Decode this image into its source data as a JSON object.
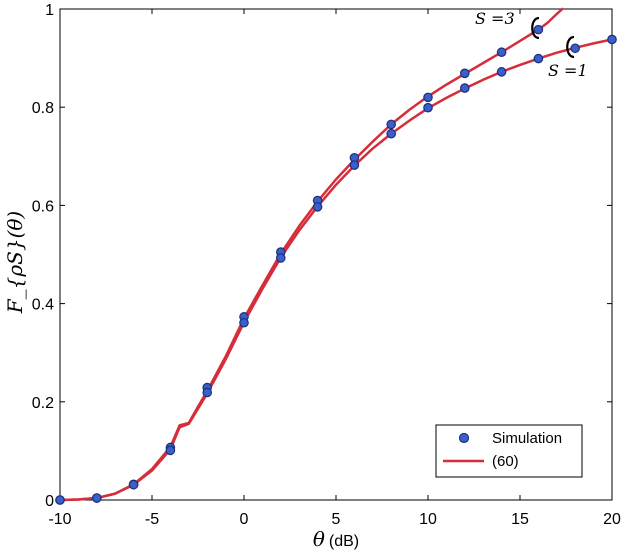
{
  "chart_data": {
    "type": "line",
    "xlabel": "θ",
    "xlabel_unit": "(dB)",
    "ylabel": "F_{ρS}(θ)",
    "xlim": [
      -10,
      20
    ],
    "ylim": [
      0,
      1
    ],
    "x_ticks": [
      -10,
      -5,
      0,
      5,
      10,
      15,
      20
    ],
    "y_ticks": [
      0,
      0.2,
      0.4,
      0.6,
      0.8,
      1
    ],
    "x_tick_labels": [
      "-10",
      "-5",
      "0",
      "5",
      "10",
      "15",
      "20"
    ],
    "y_tick_labels": [
      "0",
      "0.2",
      "0.4",
      "0.6",
      "0.8",
      "1"
    ],
    "grid": false,
    "legend": {
      "placement": "bottom-right",
      "entries": [
        {
          "label": "Simulation",
          "marker": "circle"
        },
        {
          "label": "(60)",
          "marker": "line"
        }
      ]
    },
    "colors": {
      "curve": "#d62d3a",
      "marker_fill": "#3a5fc8",
      "marker_edge": "#1c2f7a"
    },
    "annotations": [
      {
        "text": "S =3",
        "points_to": "upper curve"
      },
      {
        "text": "S =1",
        "points_to": "lower curve"
      }
    ],
    "series": [
      {
        "name": "S=3 (60)",
        "kind": "line",
        "x": [
          -10,
          -9,
          -8,
          -7,
          -6,
          -5,
          -4,
          -3.5,
          -3,
          -2.5,
          -2,
          -1,
          0,
          1,
          2,
          3,
          4,
          5,
          6,
          7,
          8,
          9,
          10,
          11,
          12,
          13,
          14,
          15,
          16,
          16.5,
          17,
          17.3
        ],
        "y": [
          0,
          0.001,
          0.004,
          0.013,
          0.032,
          0.063,
          0.108,
          0.152,
          0.157,
          0.19,
          0.222,
          0.292,
          0.37,
          0.437,
          0.502,
          0.558,
          0.608,
          0.653,
          0.693,
          0.73,
          0.765,
          0.795,
          0.822,
          0.846,
          0.868,
          0.89,
          0.912,
          0.935,
          0.958,
          0.972,
          0.99,
          1.0
        ]
      },
      {
        "name": "S=1 (60)",
        "kind": "line",
        "x": [
          -10,
          -9,
          -8,
          -7,
          -6,
          -5,
          -4,
          -3.5,
          -3,
          -2.5,
          -2,
          -1,
          0,
          1,
          2,
          3,
          4,
          5,
          6,
          7,
          8,
          9,
          10,
          11,
          12,
          13,
          14,
          15,
          16,
          17,
          18,
          19,
          20
        ],
        "y": [
          0,
          0.001,
          0.004,
          0.013,
          0.031,
          0.06,
          0.103,
          0.148,
          0.155,
          0.186,
          0.217,
          0.286,
          0.362,
          0.43,
          0.494,
          0.549,
          0.598,
          0.642,
          0.681,
          0.716,
          0.746,
          0.773,
          0.798,
          0.819,
          0.838,
          0.856,
          0.872,
          0.886,
          0.899,
          0.911,
          0.921,
          0.93,
          0.938
        ]
      },
      {
        "name": "S=3 Simulation",
        "kind": "scatter",
        "x": [
          -10,
          -8,
          -6,
          -4,
          -2,
          0,
          2,
          4,
          6,
          8,
          10,
          12,
          14,
          16
        ],
        "y": [
          0.0,
          0.004,
          0.032,
          0.107,
          0.229,
          0.373,
          0.505,
          0.61,
          0.697,
          0.765,
          0.82,
          0.869,
          0.912,
          0.958
        ]
      },
      {
        "name": "S=1 Simulation",
        "kind": "scatter",
        "x": [
          -10,
          -8,
          -6,
          -4,
          -2,
          0,
          2,
          4,
          6,
          8,
          10,
          12,
          14,
          16,
          18,
          20
        ],
        "y": [
          0.0,
          0.004,
          0.031,
          0.101,
          0.219,
          0.361,
          0.493,
          0.597,
          0.682,
          0.746,
          0.799,
          0.839,
          0.872,
          0.899,
          0.92,
          0.938
        ]
      }
    ]
  }
}
